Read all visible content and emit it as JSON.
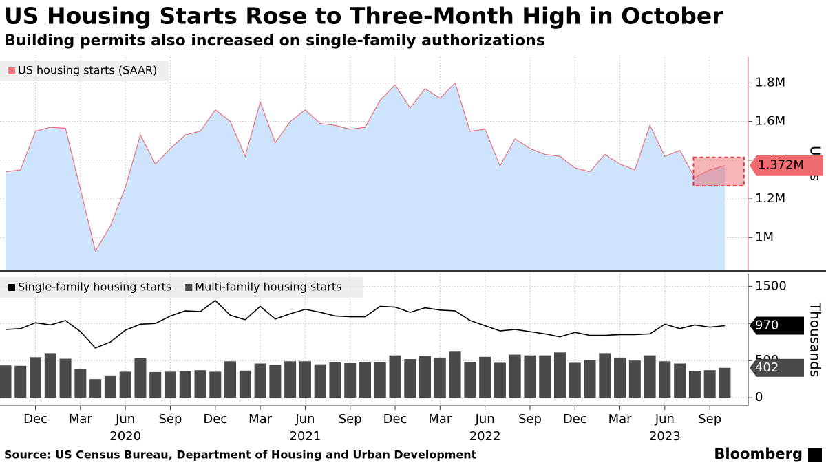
{
  "title": "US Housing Starts Rose to Three-Month High in October",
  "subtitle": "Building permits also increased on single-family authorizations",
  "source": "Source: US Census Bureau, Department of Housing and Urban Development",
  "brand": "Bloomberg",
  "x": [
    "2019-10",
    "2019-11",
    "2019-12",
    "2020-01",
    "2020-02",
    "2020-03",
    "2020-04",
    "2020-05",
    "2020-06",
    "2020-07",
    "2020-08",
    "2020-09",
    "2020-10",
    "2020-11",
    "2020-12",
    "2021-01",
    "2021-02",
    "2021-03",
    "2021-04",
    "2021-05",
    "2021-06",
    "2021-07",
    "2021-08",
    "2021-09",
    "2021-10",
    "2021-11",
    "2021-12",
    "2022-01",
    "2022-02",
    "2022-03",
    "2022-04",
    "2022-05",
    "2022-06",
    "2022-07",
    "2022-08",
    "2022-09",
    "2022-10",
    "2022-11",
    "2022-12",
    "2023-01",
    "2023-02",
    "2023-03",
    "2023-04",
    "2023-05",
    "2023-06",
    "2023-07",
    "2023-08",
    "2023-09",
    "2023-10"
  ],
  "xticks": [
    {
      "value": "2019-12",
      "label": "Dec"
    },
    {
      "value": "2020-03",
      "label": "Mar"
    },
    {
      "value": "2020-06",
      "label": "Jun"
    },
    {
      "value": "2020-09",
      "label": "Sep"
    },
    {
      "value": "2020-12",
      "label": "Dec"
    },
    {
      "value": "2021-03",
      "label": "Mar"
    },
    {
      "value": "2021-06",
      "label": "Jun"
    },
    {
      "value": "2021-09",
      "label": "Sep"
    },
    {
      "value": "2021-12",
      "label": "Dec"
    },
    {
      "value": "2022-03",
      "label": "Mar"
    },
    {
      "value": "2022-06",
      "label": "Jun"
    },
    {
      "value": "2022-09",
      "label": "Sep"
    },
    {
      "value": "2022-12",
      "label": "Dec"
    },
    {
      "value": "2023-03",
      "label": "Mar"
    },
    {
      "value": "2023-06",
      "label": "Jun"
    },
    {
      "value": "2023-09",
      "label": "Sep"
    }
  ],
  "year_labels": [
    {
      "value": "2020-06",
      "label": "2020"
    },
    {
      "value": "2021-06",
      "label": "2021"
    },
    {
      "value": "2022-06",
      "label": "2022"
    },
    {
      "value": "2023-06",
      "label": "2023"
    }
  ],
  "chart_data": [
    {
      "type": "area",
      "y_label": "Units",
      "ylim": [
        834000,
        1933000
      ],
      "yticks": [
        {
          "value": 1000000,
          "label": "1M"
        },
        {
          "value": 1200000,
          "label": "1.2M"
        },
        {
          "value": 1400000,
          "label": "1.4M"
        },
        {
          "value": 1600000,
          "label": "1.6M"
        },
        {
          "value": 1800000,
          "label": "1.8M"
        }
      ],
      "grid": true,
      "series": [
        {
          "name": "US housing starts (SAAR)",
          "color": "#e8737a",
          "fill": "#cde4fc",
          "values": [
            1340000,
            1350000,
            1550000,
            1570000,
            1565000,
            1250000,
            930000,
            1060000,
            1260000,
            1530000,
            1380000,
            1460000,
            1530000,
            1550000,
            1660000,
            1600000,
            1420000,
            1700000,
            1490000,
            1600000,
            1660000,
            1590000,
            1580000,
            1560000,
            1570000,
            1710000,
            1790000,
            1670000,
            1770000,
            1720000,
            1800000,
            1550000,
            1560000,
            1370000,
            1510000,
            1460000,
            1430000,
            1420000,
            1360000,
            1340000,
            1430000,
            1380000,
            1350000,
            1580000,
            1420000,
            1450000,
            1310000,
            1350000,
            1372000
          ],
          "value_labels": [
            null,
            null,
            null,
            null,
            null,
            null,
            null,
            null,
            null,
            null,
            null,
            null,
            null,
            null,
            null,
            null,
            null,
            null,
            null,
            null,
            null,
            null,
            null,
            null,
            null,
            null,
            null,
            null,
            null,
            null,
            null,
            null,
            null,
            null,
            null,
            null,
            null,
            null,
            null,
            null,
            null,
            null,
            null,
            null,
            null,
            null,
            null,
            null,
            "1.372M"
          ]
        }
      ]
    },
    {
      "type": "combo",
      "y_label": "Thousands",
      "ylim": [
        -110,
        1670
      ],
      "yticks": [
        0,
        500,
        1000,
        1500
      ],
      "grid": true,
      "series": [
        {
          "name": "Single-family housing starts",
          "type": "line",
          "color": "#000000",
          "values": [
            920,
            930,
            1010,
            980,
            1040,
            890,
            670,
            750,
            910,
            990,
            1000,
            1100,
            1170,
            1160,
            1310,
            1110,
            1050,
            1230,
            1060,
            1130,
            1190,
            1150,
            1100,
            1090,
            1090,
            1230,
            1220,
            1150,
            1210,
            1180,
            1170,
            1040,
            970,
            900,
            920,
            890,
            860,
            820,
            880,
            840,
            840,
            850,
            850,
            860,
            990,
            930,
            980,
            950,
            970
          ]
        },
        {
          "name": "Multi-family housing starts",
          "type": "bar",
          "color": "#4a4a4a",
          "values": [
            435,
            430,
            545,
            600,
            525,
            390,
            250,
            300,
            350,
            530,
            345,
            350,
            355,
            370,
            350,
            490,
            365,
            460,
            440,
            490,
            490,
            450,
            475,
            465,
            480,
            475,
            570,
            520,
            560,
            540,
            620,
            480,
            550,
            470,
            580,
            570,
            570,
            610,
            470,
            510,
            600,
            540,
            500,
            570,
            490,
            460,
            360,
            370,
            402
          ]
        }
      ]
    }
  ]
}
